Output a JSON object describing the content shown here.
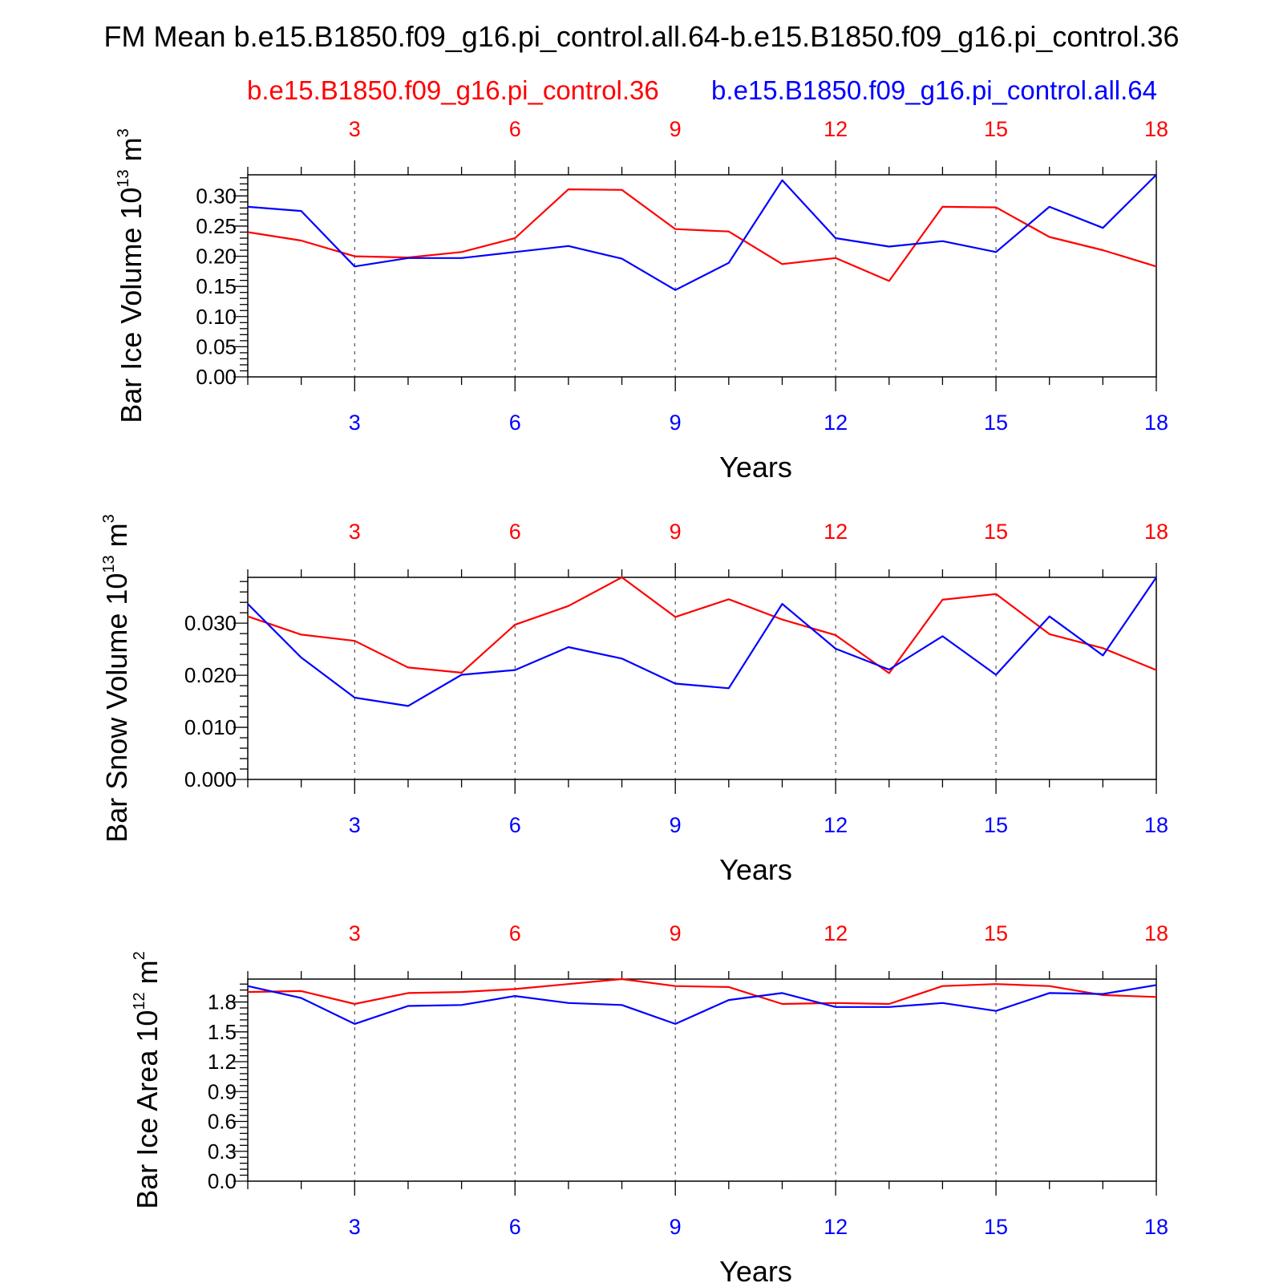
{
  "title": "FM Mean b.e15.B1850.f09_g16.pi_control.all.64-b.e15.B1850.f09_g16.pi_control.36",
  "legend": {
    "red_label": "b.e15.B1850.f09_g16.pi_control.36",
    "blue_label": "b.e15.B1850.f09_g16.pi_control.all.64"
  },
  "colors": {
    "red": "#ff0000",
    "blue": "#0000ff",
    "axis": "#000000"
  },
  "chart_data": [
    {
      "type": "line",
      "ylabel_text": "Bar Ice Volume 10",
      "ylabel_exp": "13",
      "ylabel_unit": "m",
      "ylabel_unit_exp": "3",
      "xlabel": "Years",
      "xlim": [
        1,
        18
      ],
      "ylim": [
        0,
        0.335
      ],
      "yticks": [
        "0.00",
        "0.05",
        "0.10",
        "0.15",
        "0.20",
        "0.25",
        "0.30"
      ],
      "ytick_values": [
        0,
        0.05,
        0.1,
        0.15,
        0.2,
        0.25,
        0.3
      ],
      "xticks": [
        "3",
        "6",
        "9",
        "12",
        "15",
        "18"
      ],
      "xtick_values": [
        3,
        6,
        9,
        12,
        15,
        18
      ],
      "x": [
        1,
        2,
        3,
        4,
        5,
        6,
        7,
        8,
        9,
        10,
        11,
        12,
        13,
        14,
        15,
        16,
        17,
        18
      ],
      "series": [
        {
          "name": "b.e15.B1850.f09_g16.pi_control.36",
          "color": "red",
          "values": [
            0.24,
            0.226,
            0.2,
            0.198,
            0.207,
            0.23,
            0.311,
            0.31,
            0.245,
            0.241,
            0.187,
            0.197,
            0.159,
            0.282,
            0.281,
            0.232,
            0.21,
            0.183
          ]
        },
        {
          "name": "b.e15.B1850.f09_g16.pi_control.all.64",
          "color": "blue",
          "values": [
            0.282,
            0.275,
            0.183,
            0.197,
            0.197,
            0.207,
            0.217,
            0.196,
            0.144,
            0.189,
            0.326,
            0.23,
            0.216,
            0.225,
            0.207,
            0.282,
            0.247,
            0.335
          ]
        }
      ]
    },
    {
      "type": "line",
      "ylabel_text": "Bar Snow Volume 10",
      "ylabel_exp": "13",
      "ylabel_unit": "m",
      "ylabel_unit_exp": "3",
      "xlabel": "Years",
      "xlim": [
        1,
        18
      ],
      "ylim": [
        0,
        0.0388
      ],
      "yticks": [
        "0.000",
        "0.010",
        "0.020",
        "0.030"
      ],
      "ytick_values": [
        0,
        0.01,
        0.02,
        0.03
      ],
      "xticks": [
        "3",
        "6",
        "9",
        "12",
        "15",
        "18"
      ],
      "xtick_values": [
        3,
        6,
        9,
        12,
        15,
        18
      ],
      "x": [
        1,
        2,
        3,
        4,
        5,
        6,
        7,
        8,
        9,
        10,
        11,
        12,
        13,
        14,
        15,
        16,
        17,
        18
      ],
      "series": [
        {
          "name": "b.e15.B1850.f09_g16.pi_control.36",
          "color": "red",
          "values": [
            0.0313,
            0.0278,
            0.0266,
            0.0215,
            0.0205,
            0.0297,
            0.0333,
            0.0388,
            0.0312,
            0.0346,
            0.0307,
            0.0277,
            0.0204,
            0.0345,
            0.0356,
            0.0279,
            0.0252,
            0.021
          ]
        },
        {
          "name": "b.e15.B1850.f09_g16.pi_control.all.64",
          "color": "blue",
          "values": [
            0.0337,
            0.0234,
            0.0157,
            0.0141,
            0.0201,
            0.021,
            0.0254,
            0.0232,
            0.0184,
            0.0175,
            0.0337,
            0.0251,
            0.0211,
            0.0275,
            0.0201,
            0.0313,
            0.0238,
            0.0388
          ]
        }
      ]
    },
    {
      "type": "line",
      "ylabel_text": "Bar Ice Area 10",
      "ylabel_exp": "12",
      "ylabel_unit": "m",
      "ylabel_unit_exp": "2",
      "xlabel": "Years",
      "xlim": [
        1,
        18
      ],
      "ylim": [
        0,
        2.03
      ],
      "yticks": [
        "0.0",
        "0.3",
        "0.6",
        "0.9",
        "1.2",
        "1.5",
        "1.8"
      ],
      "ytick_values": [
        0,
        0.3,
        0.6,
        0.9,
        1.2,
        1.5,
        1.8
      ],
      "xticks": [
        "3",
        "6",
        "9",
        "12",
        "15",
        "18"
      ],
      "xtick_values": [
        3,
        6,
        9,
        12,
        15,
        18
      ],
      "x": [
        1,
        2,
        3,
        4,
        5,
        6,
        7,
        8,
        9,
        10,
        11,
        12,
        13,
        14,
        15,
        16,
        17,
        18
      ],
      "series": [
        {
          "name": "b.e15.B1850.f09_g16.pi_control.36",
          "color": "red",
          "values": [
            1.9,
            1.91,
            1.78,
            1.89,
            1.9,
            1.93,
            1.98,
            2.03,
            1.96,
            1.95,
            1.78,
            1.79,
            1.78,
            1.96,
            1.98,
            1.96,
            1.87,
            1.85
          ]
        },
        {
          "name": "b.e15.B1850.f09_g16.pi_control.all.64",
          "color": "blue",
          "values": [
            1.96,
            1.84,
            1.58,
            1.76,
            1.77,
            1.86,
            1.79,
            1.77,
            1.58,
            1.82,
            1.89,
            1.75,
            1.75,
            1.79,
            1.71,
            1.89,
            1.88,
            1.97
          ]
        }
      ]
    }
  ]
}
